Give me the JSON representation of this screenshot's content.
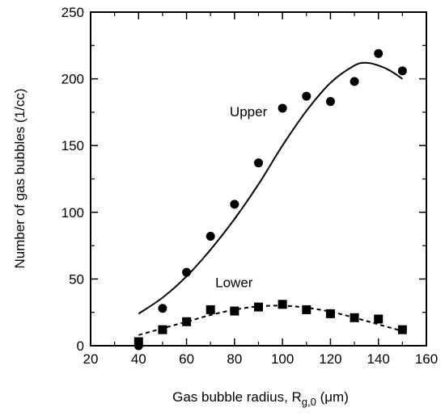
{
  "chart_data": {
    "type": "scatter",
    "title": "",
    "xlabel": {
      "prefix": "Gas bubble radius, R",
      "subscript": "g,0",
      "suffix": " (μm)"
    },
    "ylabel": "Number of gas bubbles (1/cc)",
    "xlim": [
      20,
      160
    ],
    "ylim": [
      0,
      250
    ],
    "x_ticks": [
      20,
      40,
      60,
      80,
      100,
      120,
      140,
      160
    ],
    "y_ticks": [
      0,
      50,
      100,
      150,
      200,
      250
    ],
    "grid": false,
    "series": [
      {
        "name": "Upper",
        "marker": "circle",
        "points": [
          [
            40,
            0
          ],
          [
            50,
            28
          ],
          [
            60,
            55
          ],
          [
            70,
            82
          ],
          [
            80,
            106
          ],
          [
            90,
            137
          ],
          [
            100,
            178
          ],
          [
            110,
            187
          ],
          [
            120,
            183
          ],
          [
            130,
            198
          ],
          [
            140,
            219
          ],
          [
            150,
            206
          ]
        ],
        "fit_line": {
          "style": "solid",
          "points": [
            [
              40,
              24
            ],
            [
              50,
              36
            ],
            [
              60,
              52
            ],
            [
              70,
              72
            ],
            [
              80,
              95
            ],
            [
              90,
              121
            ],
            [
              100,
              150
            ],
            [
              110,
              176
            ],
            [
              120,
              197
            ],
            [
              130,
              210
            ],
            [
              135,
              212
            ],
            [
              140,
              210
            ],
            [
              145,
              206
            ],
            [
              150,
              200
            ]
          ]
        }
      },
      {
        "name": "Lower",
        "marker": "square",
        "points": [
          [
            40,
            3
          ],
          [
            50,
            12
          ],
          [
            60,
            18
          ],
          [
            70,
            27
          ],
          [
            80,
            26
          ],
          [
            90,
            29
          ],
          [
            100,
            31
          ],
          [
            110,
            27
          ],
          [
            120,
            24
          ],
          [
            130,
            21
          ],
          [
            140,
            20
          ],
          [
            150,
            12
          ]
        ],
        "fit_line": {
          "style": "dashed",
          "points": [
            [
              40,
              8
            ],
            [
              50,
              13
            ],
            [
              60,
              18
            ],
            [
              70,
              23
            ],
            [
              80,
              27
            ],
            [
              90,
              29.5
            ],
            [
              100,
              30
            ],
            [
              110,
              28.5
            ],
            [
              120,
              25.5
            ],
            [
              130,
              21
            ],
            [
              140,
              16
            ],
            [
              150,
              11
            ]
          ]
        }
      }
    ]
  }
}
